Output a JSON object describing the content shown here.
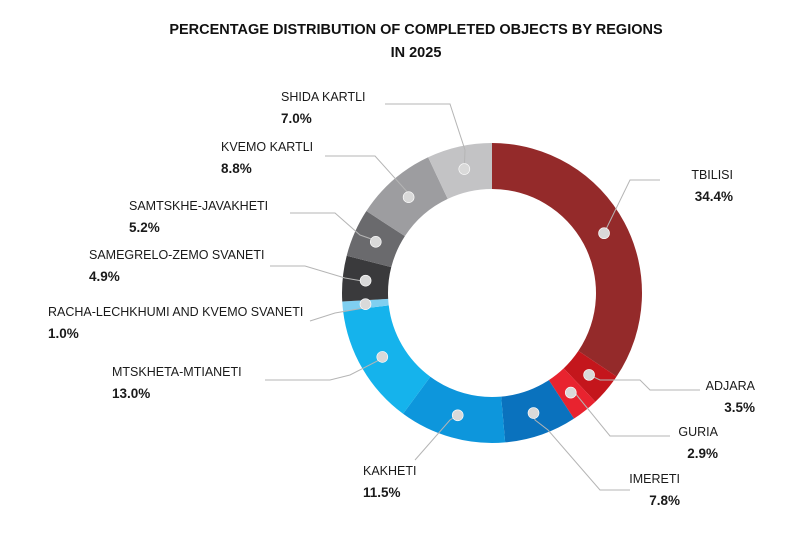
{
  "chart_data": {
    "type": "pie",
    "donut": true,
    "title_lines": [
      "PERCENTAGE DISTRIBUTION OF COMPLETED OBJECTS BY REGIONS",
      "IN 2025"
    ],
    "unit": "%",
    "slices": [
      {
        "label": "TBILISI",
        "value": 34.4,
        "display": "34.4%",
        "color": "#942a2a"
      },
      {
        "label": "ADJARA",
        "value": 3.5,
        "display": "3.5%",
        "color": "#c4161c"
      },
      {
        "label": "GURIA",
        "value": 2.9,
        "display": "2.9%",
        "color": "#e8232f"
      },
      {
        "label": "IMERETI",
        "value": 7.8,
        "display": "7.8%",
        "color": "#0a72be"
      },
      {
        "label": "KAKHETI",
        "value": 11.5,
        "display": "11.5%",
        "color": "#0d96dc"
      },
      {
        "label": "MTSKHETA-MTIANETI",
        "value": 13.0,
        "display": "13.0%",
        "color": "#15b3ec"
      },
      {
        "label": "RACHA-LECHKHUMI AND KVEMO SVANETI",
        "value": 1.0,
        "display": "1.0%",
        "color": "#7fcff0"
      },
      {
        "label": "SAMEGRELO-ZEMO SVANETI",
        "value": 4.9,
        "display": "4.9%",
        "color": "#3a3a3c"
      },
      {
        "label": "SAMTSKHE-JAVAKHETI",
        "value": 5.2,
        "display": "5.2%",
        "color": "#6a6a6d"
      },
      {
        "label": "KVEMO KARTLI",
        "value": 8.8,
        "display": "8.8%",
        "color": "#9d9da0"
      },
      {
        "label": "SHIDA KARTLI",
        "value": 7.0,
        "display": "7.0%",
        "color": "#c3c3c5"
      }
    ]
  }
}
